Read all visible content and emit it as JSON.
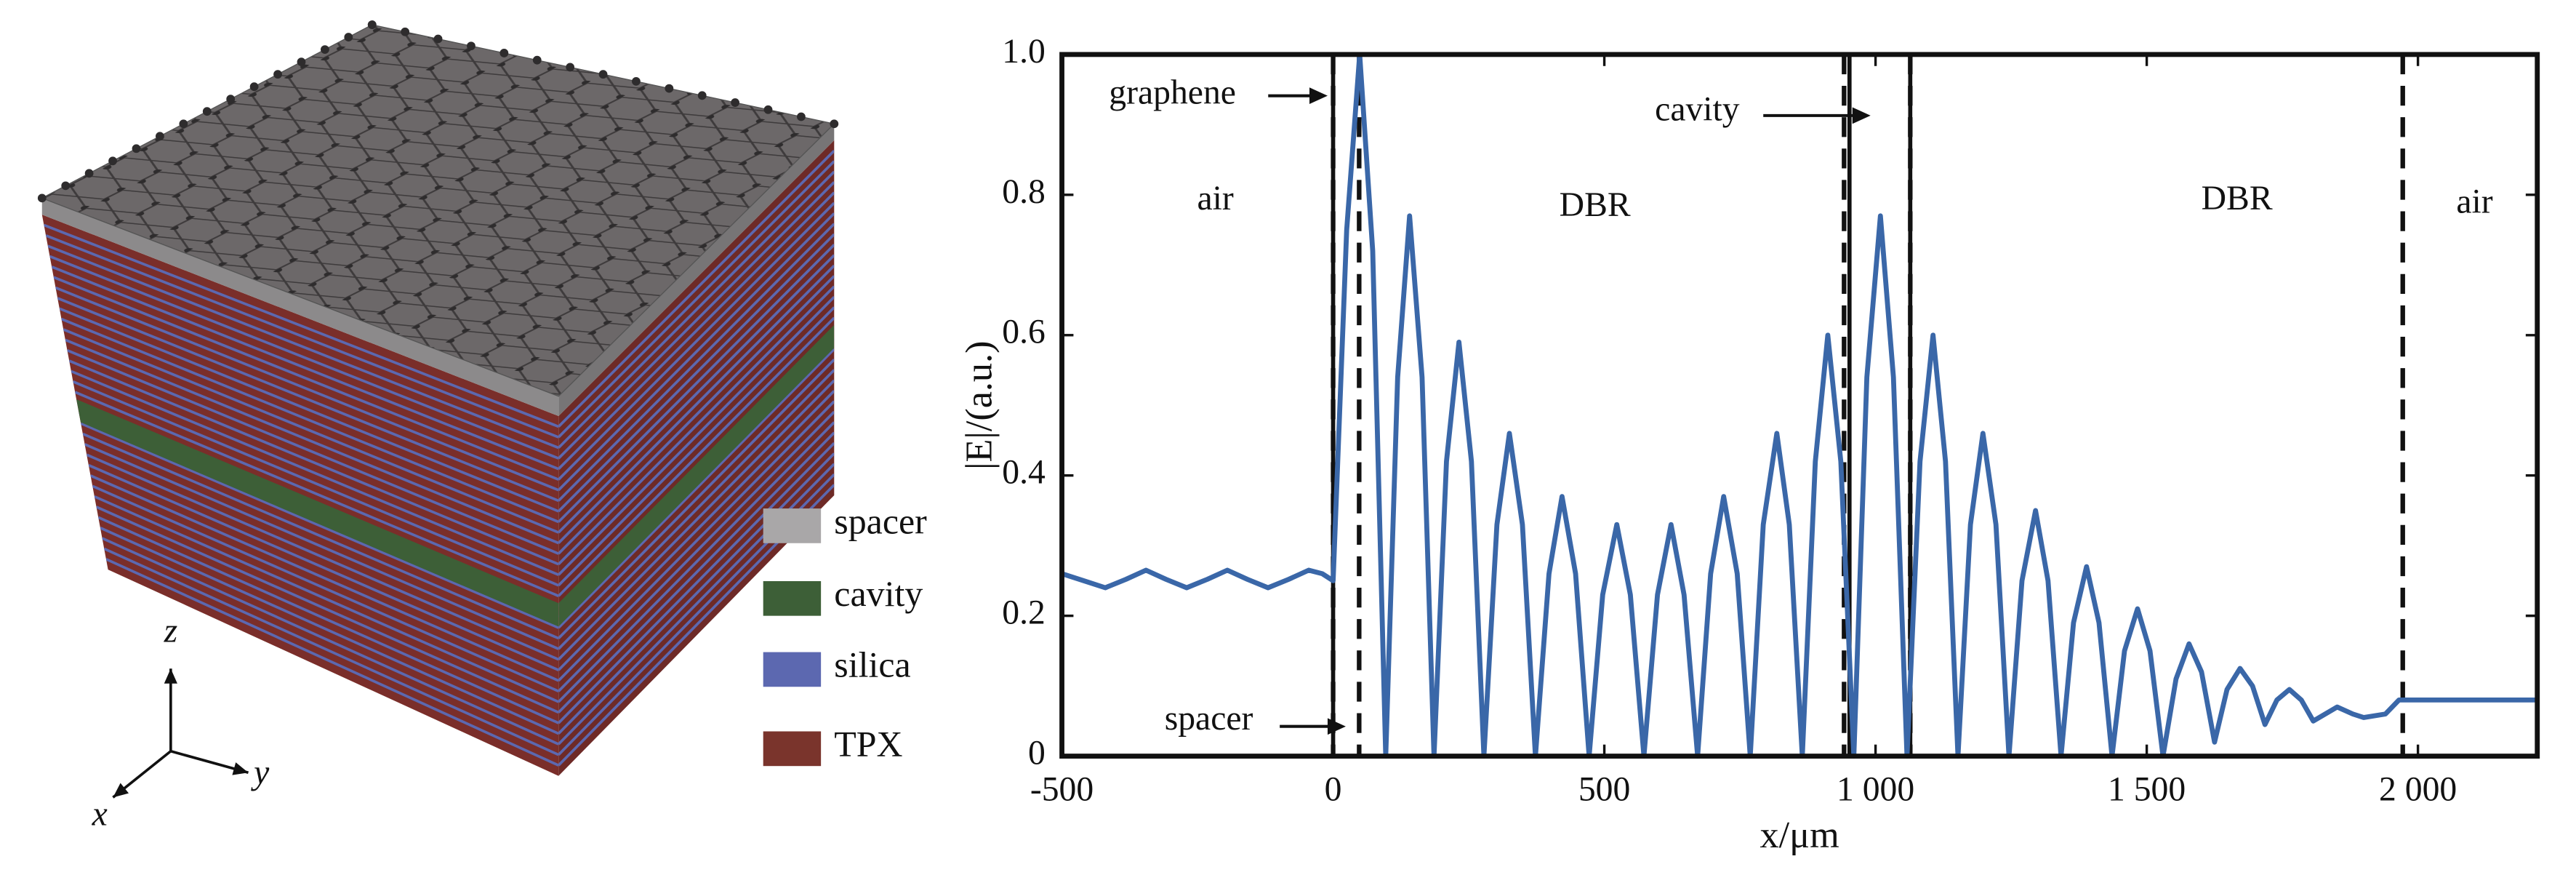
{
  "illustration": {
    "legend": [
      {
        "label": "spacer",
        "color": "#a9a7a8"
      },
      {
        "label": "cavity",
        "color": "#3d5f37"
      },
      {
        "label": "silica",
        "color": "#5c68b0"
      },
      {
        "label": "TPX",
        "color": "#7a342c"
      }
    ],
    "axes": [
      "z",
      "y",
      "x"
    ]
  },
  "chart_data": {
    "type": "line",
    "xlabel": "x/μm",
    "ylabel": "|E|/(a.u.)",
    "annotations": [
      "graphene",
      "cavity",
      "spacer",
      "air",
      "DBR",
      "DBR",
      "air"
    ],
    "xlim": [
      -500,
      2220
    ],
    "ylim": [
      0,
      1
    ],
    "xticks": [
      -500,
      0,
      500,
      {
        "value": 1000,
        "label": "1 000"
      },
      {
        "value": 1500,
        "label": "1 500"
      },
      {
        "value": 2000,
        "label": "2 000"
      }
    ],
    "yticks": [
      0,
      0.2,
      0.4,
      0.6,
      0.8,
      {
        "value": 1,
        "label": "1.0"
      }
    ],
    "dashed_lines": [
      0,
      48,
      942,
      1064,
      1972
    ],
    "solid_lines": [
      0,
      952,
      1064
    ],
    "series": [
      {
        "color": "#3a67a8",
        "x": [
          -500,
          -460,
          -420,
          -382,
          -345,
          -308,
          -270,
          -232,
          -195,
          -158,
          -120,
          -82,
          -45,
          -20,
          0,
          25,
          49,
          73,
          97,
          119,
          141,
          164,
          186,
          209,
          232,
          255,
          278,
          302,
          325,
          349,
          373,
          398,
          422,
          447,
          472,
          497,
          523,
          548,
          573,
          598,
          623,
          647,
          672,
          696,
          720,
          745,
          769,
          793,
          818,
          841,
          865,
          889,
          912,
          936,
          960,
          984,
          1009,
          1033,
          1058,
          1082,
          1106,
          1129,
          1152,
          1175,
          1198,
          1222,
          1246,
          1270,
          1295,
          1318,
          1342,
          1365,
          1389,
          1412,
          1436,
          1459,
          1483,
          1506,
          1530,
          1554,
          1578,
          1601,
          1625,
          1648,
          1672,
          1695,
          1718,
          1740,
          1763,
          1785,
          1807,
          1851,
          1880,
          1900,
          1940,
          1965,
          2220
        ],
        "values": [
          0.26,
          0.25,
          0.24,
          0.252,
          0.265,
          0.252,
          0.24,
          0.252,
          0.265,
          0.252,
          0.24,
          0.252,
          0.265,
          0.26,
          0.25,
          0.75,
          1.0,
          0.72,
          0,
          0.54,
          0.77,
          0.54,
          0,
          0.42,
          0.59,
          0.42,
          0,
          0.33,
          0.46,
          0.33,
          0,
          0.26,
          0.37,
          0.26,
          0,
          0.23,
          0.33,
          0.23,
          0,
          0.23,
          0.33,
          0.23,
          0,
          0.26,
          0.37,
          0.26,
          0,
          0.33,
          0.46,
          0.33,
          0,
          0.42,
          0.6,
          0.42,
          0,
          0.54,
          0.77,
          0.54,
          0,
          0.42,
          0.6,
          0.42,
          0,
          0.33,
          0.46,
          0.33,
          0,
          0.25,
          0.35,
          0.25,
          0,
          0.19,
          0.27,
          0.19,
          0,
          0.15,
          0.21,
          0.15,
          0,
          0.11,
          0.16,
          0.12,
          0.02,
          0.095,
          0.125,
          0.1,
          0.045,
          0.08,
          0.095,
          0.08,
          0.05,
          0.07,
          0.06,
          0.055,
          0.06,
          0.08,
          0.08
        ]
      }
    ]
  }
}
